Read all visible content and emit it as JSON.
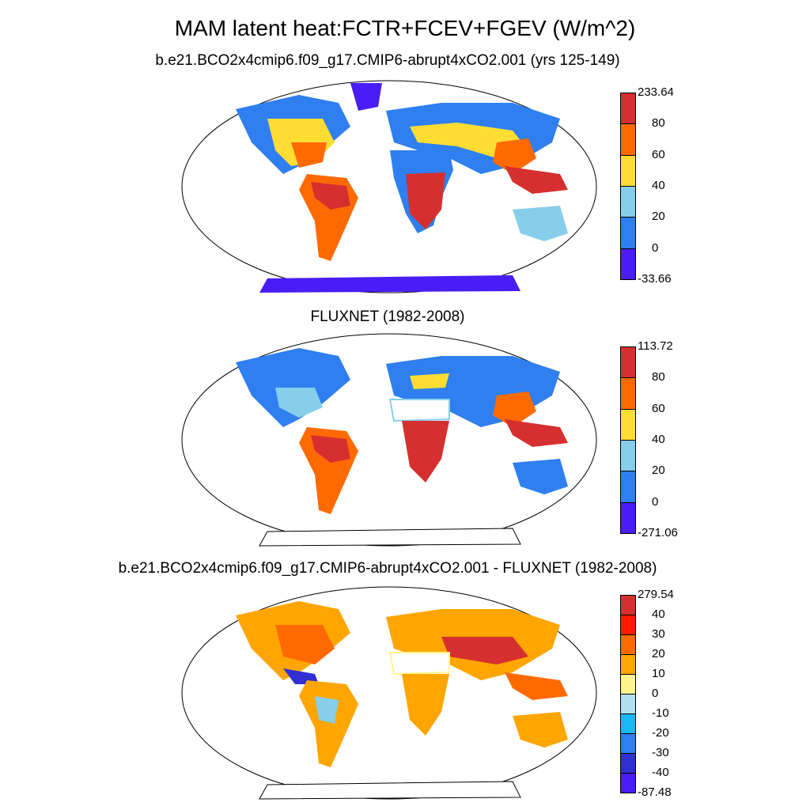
{
  "title": "MAM latent heat:FCTR+FCEV+FGEV (W/m^2)",
  "panels": [
    {
      "subtitle": "b.e21.BCO2x4cmip6.f09_g17.CMIP6-abrupt4xCO2.001 (yrs 125-149)",
      "colorbar": {
        "labels": [
          "233.64",
          "80",
          "60",
          "40",
          "20",
          "0",
          "-33.66"
        ],
        "colors": [
          "#d62f2f",
          "#ff6a00",
          "#ffdd33",
          "#87ceeb",
          "#2f7ff0",
          "#4b1cf5"
        ]
      }
    },
    {
      "subtitle": "FLUXNET (1982-2008)",
      "colorbar": {
        "labels": [
          "113.72",
          "80",
          "60",
          "40",
          "20",
          "0",
          "-271.06"
        ],
        "colors": [
          "#d62f2f",
          "#ff6a00",
          "#ffdd33",
          "#87ceeb",
          "#2f7ff0",
          "#4b1cf5"
        ]
      }
    },
    {
      "subtitle": "b.e21.BCO2x4cmip6.f09_g17.CMIP6-abrupt4xCO2.001 - FLUXNET (1982-2008)",
      "colorbar": {
        "labels": [
          "279.54",
          "40",
          "30",
          "20",
          "10",
          "0",
          "-10",
          "-20",
          "-30",
          "-40",
          "-87.48"
        ],
        "colors": [
          "#d62f2f",
          "#ff1a00",
          "#ff6a00",
          "#ffa500",
          "#fff58c",
          "#b0e0f0",
          "#1ab8f5",
          "#2f7ff0",
          "#3030d0",
          "#4b1cf5"
        ]
      }
    }
  ]
}
